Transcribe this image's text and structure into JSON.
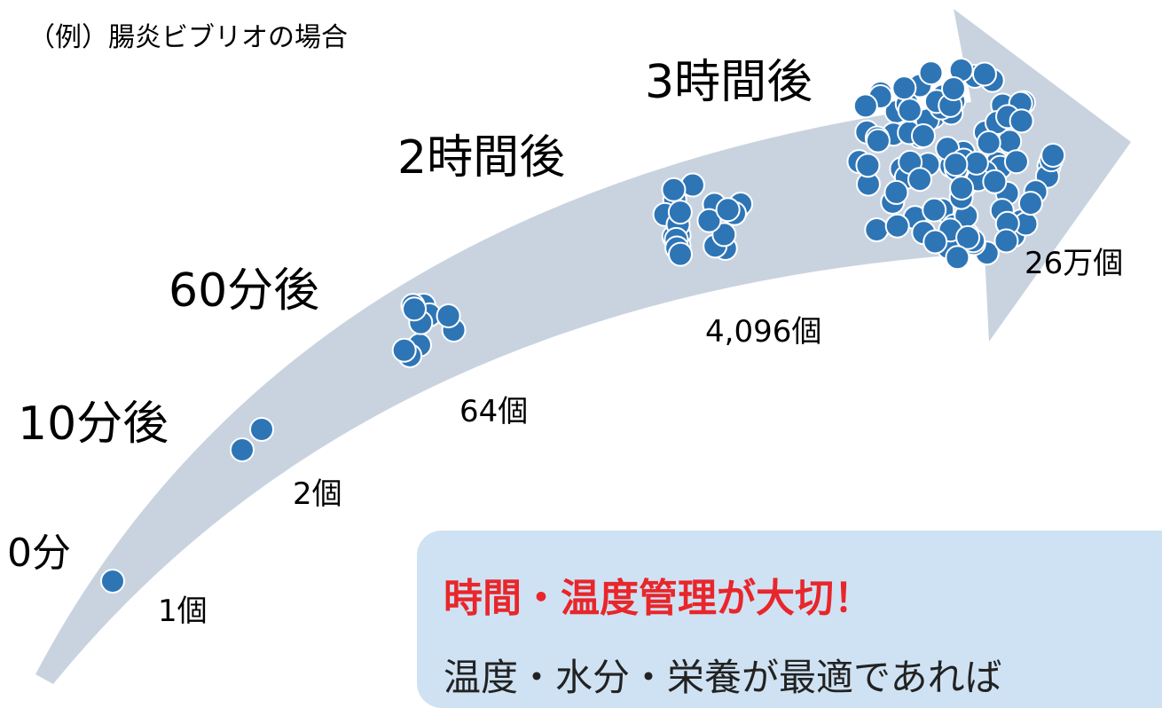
{
  "title": "（例）腸炎ビブリオの場合",
  "stages": [
    {
      "time": "0分",
      "count": "1個"
    },
    {
      "time": "10分後",
      "count": "2個"
    },
    {
      "time": "60分後",
      "count": "64個"
    },
    {
      "time": "2時間後",
      "count": "4,096個"
    },
    {
      "time": "3時間後",
      "count": "26万個"
    }
  ],
  "callout": {
    "heading": "時間・温度管理が大切！",
    "text": "温度・水分・栄養が最適であれば"
  }
}
